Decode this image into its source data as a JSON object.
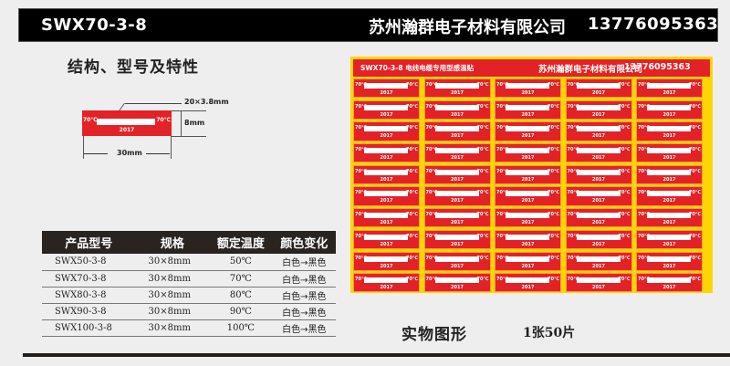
{
  "header": {
    "model": "SWX70-3-8",
    "company": "苏州瀚群电子材料有限公司",
    "phone": "13776095363"
  },
  "section_title": "结构、型号及特性",
  "diagram": {
    "window_size": "20×3.8mm",
    "height": "8mm",
    "width": "30mm",
    "temp_left": "70℃",
    "temp_right": "70℃",
    "year": "2017"
  },
  "spec_table": {
    "headers": [
      "产品型号",
      "规格",
      "额定温度",
      "颜色变化"
    ],
    "rows": [
      [
        "SWX50-3-8",
        "30×8mm",
        "50℃",
        "白色→黑色"
      ],
      [
        "SWX70-3-8",
        "30×8mm",
        "70℃",
        "白色→黑色"
      ],
      [
        "SWX80-3-8",
        "30×8mm",
        "80℃",
        "白色→黑色"
      ],
      [
        "SWX90-3-8",
        "30×8mm",
        "90℃",
        "白色→黑色"
      ],
      [
        "SWX100-3-8",
        "30×8mm",
        "100℃",
        "白色→黑色"
      ]
    ]
  },
  "sheet": {
    "title": "SWX70-3-8 电线电缆专用型感温贴",
    "company": "苏州瀚群电子材料有限公司",
    "phone": "13776095363",
    "rows": 10,
    "cols": 5,
    "label_temp": "70℃",
    "label_year": "2017",
    "colors": {
      "label": "#e32227",
      "border": "#ffd500",
      "window": "#ffffff"
    }
  },
  "photo_caption": "实物图形",
  "photo_quantity": "1张50片"
}
